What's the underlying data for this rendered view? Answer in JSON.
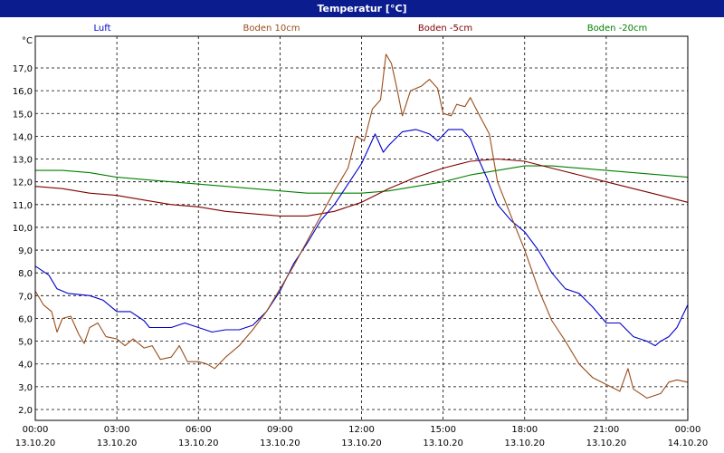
{
  "title": "Temperatur [°C]",
  "chart_data": {
    "type": "line",
    "title": "Temperatur [°C]",
    "ylabel": "°C",
    "ylim": [
      1.5,
      18.0
    ],
    "yticks": [
      "2,0",
      "3,0",
      "4,0",
      "5,0",
      "6,0",
      "7,0",
      "8,0",
      "9,0",
      "10,0",
      "11,0",
      "12,0",
      "13,0",
      "14,0",
      "15,0",
      "16,0",
      "17,0"
    ],
    "xticks": [
      {
        "time": "00:00",
        "date": "13.10.20"
      },
      {
        "time": "03:00",
        "date": "13.10.20"
      },
      {
        "time": "06:00",
        "date": "13.10.20"
      },
      {
        "time": "09:00",
        "date": "13.10.20"
      },
      {
        "time": "12:00",
        "date": "13.10.20"
      },
      {
        "time": "15:00",
        "date": "13.10.20"
      },
      {
        "time": "18:00",
        "date": "13.10.20"
      },
      {
        "time": "21:00",
        "date": "13.10.20"
      },
      {
        "time": "00:00",
        "date": "14.10.20"
      }
    ],
    "x_unit": "hours since 13.10.20 00:00",
    "grid": true,
    "legend_position": "top",
    "series": [
      {
        "name": "Luft",
        "color": "#0000cc",
        "points": [
          [
            0,
            8.3
          ],
          [
            0.5,
            7.9
          ],
          [
            0.8,
            7.3
          ],
          [
            1.2,
            7.1
          ],
          [
            2,
            7.0
          ],
          [
            2.5,
            6.8
          ],
          [
            3,
            6.3
          ],
          [
            3.5,
            6.3
          ],
          [
            4,
            5.9
          ],
          [
            4.2,
            5.6
          ],
          [
            5,
            5.6
          ],
          [
            5.5,
            5.8
          ],
          [
            6,
            5.6
          ],
          [
            6.5,
            5.4
          ],
          [
            7,
            5.5
          ],
          [
            7.5,
            5.5
          ],
          [
            8,
            5.7
          ],
          [
            8.5,
            6.3
          ],
          [
            9,
            7.2
          ],
          [
            9.5,
            8.4
          ],
          [
            10,
            9.3
          ],
          [
            10.5,
            10.3
          ],
          [
            11,
            11.0
          ],
          [
            11.5,
            11.9
          ],
          [
            12,
            12.8
          ],
          [
            12.5,
            14.1
          ],
          [
            12.8,
            13.3
          ],
          [
            13,
            13.6
          ],
          [
            13.5,
            14.2
          ],
          [
            14,
            14.3
          ],
          [
            14.5,
            14.1
          ],
          [
            14.8,
            13.8
          ],
          [
            15.2,
            14.3
          ],
          [
            15.7,
            14.3
          ],
          [
            16,
            13.9
          ],
          [
            16.3,
            13.0
          ],
          [
            16.6,
            12.2
          ],
          [
            17,
            11.0
          ],
          [
            17.5,
            10.3
          ],
          [
            18,
            9.8
          ],
          [
            18.5,
            9.0
          ],
          [
            19,
            8.0
          ],
          [
            19.5,
            7.3
          ],
          [
            20,
            7.1
          ],
          [
            20.5,
            6.5
          ],
          [
            21,
            5.8
          ],
          [
            21.5,
            5.8
          ],
          [
            22,
            5.2
          ],
          [
            22.5,
            5.0
          ],
          [
            22.8,
            4.8
          ],
          [
            23,
            5.0
          ],
          [
            23.3,
            5.2
          ],
          [
            23.6,
            5.6
          ],
          [
            24,
            6.6
          ]
        ]
      },
      {
        "name": "Boden 10cm",
        "color": "#994d1a",
        "points": [
          [
            0,
            7.2
          ],
          [
            0.3,
            6.6
          ],
          [
            0.6,
            6.3
          ],
          [
            0.8,
            5.4
          ],
          [
            1,
            6.0
          ],
          [
            1.3,
            6.1
          ],
          [
            1.6,
            5.3
          ],
          [
            1.8,
            4.9
          ],
          [
            2,
            5.6
          ],
          [
            2.3,
            5.8
          ],
          [
            2.6,
            5.2
          ],
          [
            3,
            5.1
          ],
          [
            3.3,
            4.8
          ],
          [
            3.6,
            5.1
          ],
          [
            4,
            4.7
          ],
          [
            4.3,
            4.8
          ],
          [
            4.6,
            4.2
          ],
          [
            5,
            4.3
          ],
          [
            5.3,
            4.8
          ],
          [
            5.6,
            4.1
          ],
          [
            6,
            4.1
          ],
          [
            6.3,
            4.0
          ],
          [
            6.6,
            3.8
          ],
          [
            7,
            4.3
          ],
          [
            7.5,
            4.8
          ],
          [
            8,
            5.5
          ],
          [
            8.5,
            6.3
          ],
          [
            9,
            7.3
          ],
          [
            9.5,
            8.3
          ],
          [
            10,
            9.4
          ],
          [
            10.5,
            10.5
          ],
          [
            11,
            11.6
          ],
          [
            11.5,
            12.6
          ],
          [
            11.8,
            14.0
          ],
          [
            12.1,
            13.8
          ],
          [
            12.4,
            15.2
          ],
          [
            12.7,
            15.6
          ],
          [
            12.9,
            17.6
          ],
          [
            13.1,
            17.2
          ],
          [
            13.3,
            16.1
          ],
          [
            13.5,
            14.9
          ],
          [
            13.8,
            16.0
          ],
          [
            14.2,
            16.2
          ],
          [
            14.5,
            16.5
          ],
          [
            14.8,
            16.1
          ],
          [
            15,
            15.0
          ],
          [
            15.3,
            14.9
          ],
          [
            15.5,
            15.4
          ],
          [
            15.8,
            15.3
          ],
          [
            16,
            15.7
          ],
          [
            16.3,
            15.0
          ],
          [
            16.7,
            14.1
          ],
          [
            17,
            12.0
          ],
          [
            17.5,
            10.5
          ],
          [
            18,
            9.0
          ],
          [
            18.5,
            7.3
          ],
          [
            19,
            5.9
          ],
          [
            19.5,
            5.0
          ],
          [
            20,
            4.0
          ],
          [
            20.5,
            3.4
          ],
          [
            21,
            3.1
          ],
          [
            21.5,
            2.8
          ],
          [
            21.8,
            3.8
          ],
          [
            22,
            2.9
          ],
          [
            22.5,
            2.5
          ],
          [
            23,
            2.7
          ],
          [
            23.3,
            3.2
          ],
          [
            23.6,
            3.3
          ],
          [
            24,
            3.2
          ]
        ]
      },
      {
        "name": "Boden -5cm",
        "color": "#800000",
        "points": [
          [
            0,
            11.8
          ],
          [
            1,
            11.7
          ],
          [
            2,
            11.5
          ],
          [
            3,
            11.4
          ],
          [
            4,
            11.2
          ],
          [
            5,
            11.0
          ],
          [
            6,
            10.9
          ],
          [
            7,
            10.7
          ],
          [
            8,
            10.6
          ],
          [
            9,
            10.5
          ],
          [
            10,
            10.5
          ],
          [
            11,
            10.7
          ],
          [
            12,
            11.1
          ],
          [
            13,
            11.7
          ],
          [
            14,
            12.2
          ],
          [
            15,
            12.6
          ],
          [
            16,
            12.9
          ],
          [
            17,
            13.0
          ],
          [
            18,
            12.9
          ],
          [
            19,
            12.6
          ],
          [
            20,
            12.3
          ],
          [
            21,
            12.0
          ],
          [
            22,
            11.7
          ],
          [
            23,
            11.4
          ],
          [
            24,
            11.1
          ]
        ]
      },
      {
        "name": "Boden -20cm",
        "color": "#008000",
        "points": [
          [
            0,
            12.5
          ],
          [
            1,
            12.5
          ],
          [
            2,
            12.4
          ],
          [
            3,
            12.2
          ],
          [
            4,
            12.1
          ],
          [
            5,
            12.0
          ],
          [
            6,
            11.9
          ],
          [
            7,
            11.8
          ],
          [
            8,
            11.7
          ],
          [
            9,
            11.6
          ],
          [
            10,
            11.5
          ],
          [
            11,
            11.5
          ],
          [
            12,
            11.5
          ],
          [
            13,
            11.6
          ],
          [
            14,
            11.8
          ],
          [
            15,
            12.0
          ],
          [
            16,
            12.3
          ],
          [
            17,
            12.5
          ],
          [
            18,
            12.7
          ],
          [
            19,
            12.7
          ],
          [
            20,
            12.6
          ],
          [
            21,
            12.5
          ],
          [
            22,
            12.4
          ],
          [
            23,
            12.3
          ],
          [
            24,
            12.2
          ]
        ]
      }
    ]
  }
}
